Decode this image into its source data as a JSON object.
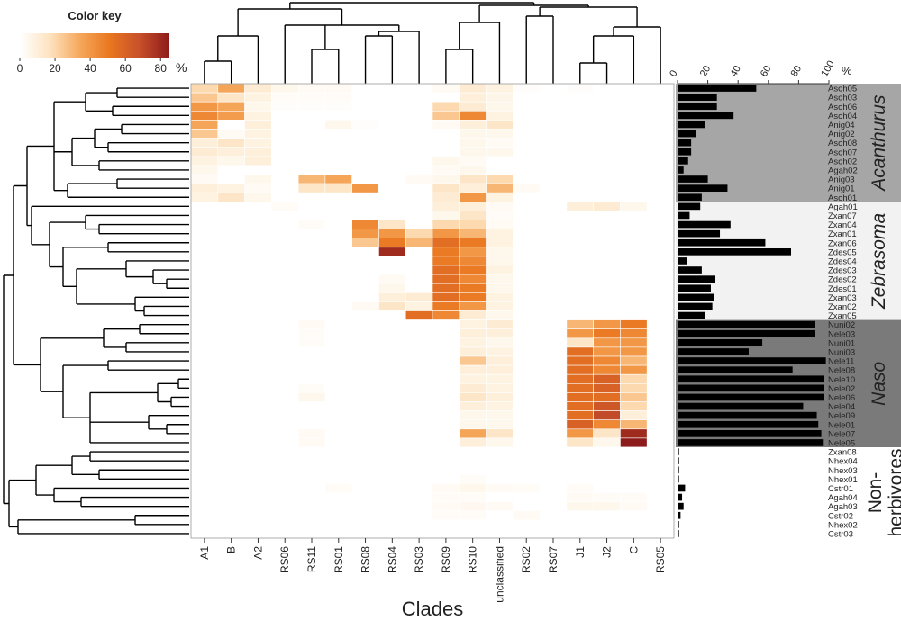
{
  "chart_data": [
    {
      "type": "heatmap",
      "xlabel": "Clades",
      "categories": [
        "A1",
        "B",
        "A2",
        "RS06",
        "RS11",
        "RS01",
        "RS08",
        "RS04",
        "RS03",
        "RS09",
        "RS10",
        "unclassified",
        "RS02",
        "RS07",
        "J1",
        "J2",
        "C",
        "RS05"
      ],
      "values": [
        [
          20,
          35,
          12,
          5,
          3,
          3,
          0,
          0,
          0,
          3,
          12,
          8,
          1,
          0,
          1,
          0,
          0,
          0
        ],
        [
          25,
          15,
          8,
          2,
          2,
          2,
          0,
          0,
          0,
          0,
          10,
          6,
          0,
          0,
          0,
          0,
          0,
          0
        ],
        [
          40,
          35,
          5,
          1,
          1,
          1,
          0,
          0,
          0,
          20,
          12,
          5,
          0,
          0,
          0,
          0,
          0,
          0
        ],
        [
          45,
          38,
          8,
          0,
          0,
          0,
          0,
          0,
          0,
          25,
          45,
          8,
          0,
          0,
          0,
          0,
          0,
          0
        ],
        [
          35,
          0,
          10,
          0,
          0,
          5,
          1,
          0,
          0,
          3,
          10,
          15,
          0,
          0,
          0,
          0,
          0,
          0
        ],
        [
          25,
          3,
          8,
          0,
          0,
          0,
          0,
          0,
          0,
          0,
          5,
          5,
          0,
          0,
          0,
          0,
          0,
          0
        ],
        [
          10,
          15,
          8,
          0,
          0,
          0,
          0,
          0,
          0,
          0,
          5,
          3,
          0,
          0,
          0,
          0,
          0,
          0
        ],
        [
          12,
          10,
          10,
          0,
          0,
          0,
          0,
          0,
          0,
          0,
          5,
          5,
          0,
          0,
          0,
          0,
          0,
          0
        ],
        [
          8,
          5,
          10,
          0,
          0,
          0,
          0,
          0,
          0,
          5,
          3,
          0,
          0,
          0,
          0,
          0,
          0,
          0
        ],
        [
          5,
          0,
          0,
          0,
          0,
          0,
          0,
          0,
          0,
          3,
          5,
          0,
          0,
          0,
          0,
          0,
          0,
          0
        ],
        [
          3,
          0,
          5,
          0,
          30,
          35,
          0,
          0,
          3,
          5,
          15,
          20,
          0,
          0,
          0,
          0,
          0,
          0
        ],
        [
          10,
          8,
          3,
          0,
          15,
          15,
          40,
          0,
          0,
          15,
          10,
          30,
          3,
          0,
          0,
          0,
          0,
          0
        ],
        [
          8,
          15,
          5,
          0,
          0,
          0,
          0,
          0,
          0,
          12,
          40,
          8,
          0,
          0,
          0,
          0,
          0,
          0
        ],
        [
          0,
          0,
          0,
          2,
          0,
          0,
          0,
          0,
          0,
          10,
          10,
          3,
          0,
          0,
          10,
          12,
          5,
          0
        ],
        [
          0,
          0,
          0,
          0,
          0,
          0,
          0,
          0,
          0,
          5,
          15,
          2,
          0,
          0,
          0,
          0,
          0,
          0
        ],
        [
          0,
          0,
          0,
          0,
          2,
          0,
          45,
          15,
          0,
          20,
          20,
          3,
          0,
          0,
          0,
          0,
          0,
          0
        ],
        [
          0,
          0,
          0,
          0,
          0,
          0,
          40,
          40,
          20,
          40,
          30,
          8,
          0,
          0,
          0,
          0,
          0,
          0
        ],
        [
          0,
          0,
          0,
          0,
          0,
          0,
          25,
          50,
          30,
          55,
          50,
          8,
          0,
          0,
          0,
          0,
          0,
          0
        ],
        [
          0,
          0,
          0,
          0,
          0,
          0,
          0,
          80,
          0,
          50,
          40,
          5,
          0,
          0,
          0,
          0,
          0,
          0
        ],
        [
          0,
          0,
          0,
          0,
          0,
          0,
          0,
          0,
          0,
          50,
          45,
          5,
          0,
          0,
          0,
          0,
          0,
          0
        ],
        [
          0,
          0,
          0,
          0,
          0,
          0,
          0,
          0,
          0,
          55,
          50,
          8,
          0,
          0,
          0,
          0,
          0,
          0
        ],
        [
          0,
          0,
          0,
          0,
          0,
          0,
          0,
          3,
          0,
          55,
          45,
          5,
          0,
          0,
          0,
          0,
          0,
          0
        ],
        [
          0,
          0,
          0,
          0,
          0,
          0,
          0,
          5,
          0,
          55,
          50,
          5,
          0,
          0,
          0,
          0,
          0,
          0
        ],
        [
          0,
          0,
          0,
          0,
          0,
          0,
          0,
          10,
          12,
          55,
          50,
          8,
          0,
          0,
          0,
          0,
          0,
          0
        ],
        [
          0,
          0,
          0,
          0,
          0,
          0,
          3,
          15,
          8,
          50,
          40,
          8,
          0,
          0,
          0,
          0,
          0,
          0
        ],
        [
          0,
          0,
          0,
          0,
          0,
          0,
          0,
          0,
          55,
          45,
          12,
          5,
          0,
          0,
          0,
          0,
          0,
          0
        ],
        [
          0,
          0,
          0,
          0,
          3,
          0,
          0,
          0,
          0,
          0,
          8,
          12,
          0,
          0,
          30,
          40,
          50,
          0
        ],
        [
          0,
          0,
          0,
          0,
          2,
          0,
          0,
          0,
          0,
          0,
          10,
          10,
          0,
          0,
          40,
          50,
          45,
          0
        ],
        [
          0,
          0,
          0,
          0,
          2,
          0,
          0,
          0,
          0,
          0,
          8,
          5,
          0,
          0,
          15,
          40,
          40,
          0
        ],
        [
          0,
          0,
          0,
          0,
          0,
          0,
          0,
          0,
          0,
          0,
          10,
          8,
          0,
          0,
          55,
          40,
          40,
          0
        ],
        [
          0,
          0,
          0,
          0,
          0,
          0,
          0,
          0,
          0,
          0,
          25,
          10,
          0,
          0,
          55,
          45,
          30,
          0
        ],
        [
          0,
          0,
          0,
          0,
          0,
          0,
          0,
          0,
          0,
          0,
          10,
          10,
          0,
          0,
          55,
          45,
          40,
          0
        ],
        [
          0,
          0,
          0,
          0,
          0,
          0,
          0,
          0,
          0,
          0,
          8,
          8,
          0,
          0,
          55,
          60,
          20,
          0
        ],
        [
          0,
          0,
          0,
          0,
          2,
          0,
          0,
          0,
          0,
          0,
          12,
          8,
          0,
          0,
          55,
          60,
          20,
          0
        ],
        [
          0,
          0,
          0,
          0,
          5,
          0,
          0,
          0,
          0,
          0,
          15,
          10,
          0,
          0,
          55,
          55,
          25,
          0
        ],
        [
          0,
          0,
          0,
          0,
          0,
          0,
          0,
          0,
          0,
          0,
          10,
          8,
          0,
          0,
          55,
          65,
          20,
          0
        ],
        [
          0,
          0,
          0,
          0,
          0,
          0,
          0,
          0,
          0,
          0,
          5,
          5,
          0,
          0,
          55,
          70,
          10,
          0
        ],
        [
          0,
          0,
          0,
          0,
          0,
          0,
          0,
          0,
          0,
          0,
          5,
          5,
          0,
          0,
          60,
          45,
          30,
          0
        ],
        [
          0,
          0,
          0,
          0,
          3,
          0,
          0,
          0,
          0,
          0,
          35,
          15,
          0,
          0,
          40,
          15,
          80,
          0
        ],
        [
          0,
          0,
          0,
          0,
          3,
          0,
          0,
          0,
          0,
          0,
          10,
          5,
          0,
          0,
          15,
          5,
          85,
          0
        ],
        [
          0,
          0,
          0,
          0,
          0,
          0,
          0,
          0,
          0,
          0,
          0,
          0,
          0,
          0,
          0,
          0,
          0,
          0
        ],
        [
          0,
          0,
          0,
          0,
          0,
          0,
          0,
          0,
          0,
          0,
          0,
          0,
          0,
          0,
          0,
          0,
          0,
          0
        ],
        [
          0,
          0,
          0,
          0,
          0,
          0,
          0,
          0,
          0,
          0,
          0,
          0,
          0,
          0,
          0,
          0,
          0,
          0
        ],
        [
          0,
          0,
          0,
          0,
          0,
          0,
          0,
          0,
          0,
          0,
          2,
          0,
          0,
          0,
          0,
          0,
          0,
          0
        ],
        [
          0,
          0,
          0,
          0,
          0,
          2,
          0,
          0,
          0,
          3,
          5,
          3,
          2,
          0,
          2,
          0,
          0,
          0
        ],
        [
          0,
          0,
          0,
          0,
          0,
          0,
          0,
          0,
          0,
          2,
          2,
          0,
          0,
          0,
          3,
          2,
          2,
          0
        ],
        [
          0,
          0,
          0,
          0,
          0,
          0,
          0,
          0,
          0,
          3,
          4,
          3,
          0,
          0,
          5,
          5,
          3,
          0
        ],
        [
          0,
          0,
          0,
          0,
          0,
          0,
          0,
          0,
          0,
          2,
          2,
          0,
          3,
          0,
          0,
          0,
          0,
          0
        ],
        [
          0,
          0,
          0,
          0,
          0,
          0,
          0,
          0,
          0,
          0,
          0,
          0,
          0,
          0,
          0,
          0,
          0,
          0
        ],
        [
          0,
          0,
          0,
          0,
          0,
          0,
          0,
          0,
          0,
          0,
          0,
          0,
          0,
          0,
          0,
          0,
          0,
          0
        ]
      ],
      "colorbar": {
        "title": "Color key",
        "lim": [
          0,
          85
        ],
        "ticks": [
          0,
          20,
          40,
          60,
          80
        ],
        "unit": "%",
        "colors": [
          "#ffffff",
          "#fde3c0",
          "#f6a85c",
          "#e9771f",
          "#c8502a",
          "#8e1b1b"
        ]
      }
    },
    {
      "type": "bar",
      "orientation": "horizontal",
      "xlim": [
        0,
        100
      ],
      "xticks": [
        0,
        20,
        40,
        60,
        80,
        100
      ],
      "unit": "%",
      "color": "#000000",
      "groups": [
        {
          "name": "Acanthurus",
          "color": "#a6a6a6",
          "categories": [
            "Asoh05",
            "Asoh03",
            "Asoh06",
            "Asoh04",
            "Anig04",
            "Anig02",
            "Asoh08",
            "Asoh07",
            "Asoh02",
            "Agah02",
            "Anig03",
            "Anig01",
            "Asoh01"
          ],
          "values": [
            52,
            26,
            26,
            37,
            18,
            12,
            9,
            9,
            7,
            4,
            20,
            33,
            16
          ]
        },
        {
          "name": "Zebrasoma",
          "color": "#f2f2f2",
          "categories": [
            "Agah01",
            "Zxan07",
            "Zxan04",
            "Zxan01",
            "Zxan06",
            "Zdes05",
            "Zdes04",
            "Zdes03",
            "Zdes02",
            "Zdes01",
            "Zxan03",
            "Zxan02",
            "Zxan05"
          ],
          "values": [
            15,
            8,
            35,
            28,
            58,
            75,
            6,
            16,
            25,
            22,
            24,
            23,
            18
          ]
        },
        {
          "name": "Naso",
          "color": "#7a7a7a",
          "categories": [
            "Nuni02",
            "Nele03",
            "Nuni01",
            "Nuni03",
            "Nele11",
            "Nele08",
            "Nele10",
            "Nele02",
            "Nele06",
            "Nele04",
            "Nele09",
            "Nele01",
            "Nele07",
            "Nele05"
          ],
          "values": [
            91,
            91,
            56,
            47,
            98,
            76,
            97,
            97,
            97,
            83,
            92,
            93,
            95,
            96
          ]
        },
        {
          "name": "Non-herbivores",
          "color": "#ffffff",
          "categories": [
            "Zxan08",
            "Nhex04",
            "Nhex03",
            "Nhex01",
            "Cstr01",
            "Agah04",
            "Agah03",
            "Cstr02",
            "Nhex02",
            "Cstr03"
          ],
          "values": [
            1,
            1,
            1,
            1,
            5,
            3,
            4,
            2,
            1,
            1
          ]
        }
      ]
    }
  ]
}
